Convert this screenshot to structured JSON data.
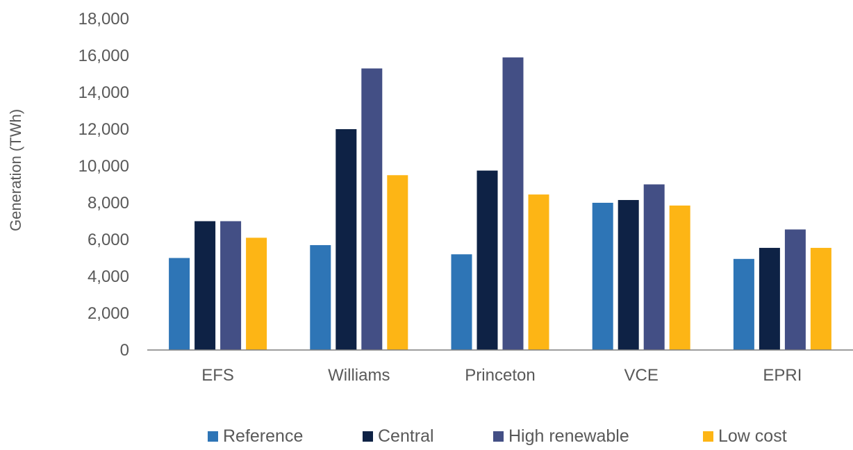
{
  "chart_data": {
    "type": "bar",
    "ylabel": "Generation (TWh)",
    "ylim": [
      0,
      18000
    ],
    "yticks": [
      0,
      2000,
      4000,
      6000,
      8000,
      10000,
      12000,
      14000,
      16000,
      18000
    ],
    "ytick_labels": [
      "0",
      "2,000",
      "4,000",
      "6,000",
      "8,000",
      "10,000",
      "12,000",
      "14,000",
      "16,000",
      "18,000"
    ],
    "grid": false,
    "legend": "bottom",
    "categories": [
      "EFS",
      "Williams",
      "Princeton",
      "VCE",
      "EPRI"
    ],
    "series": [
      {
        "name": "Reference",
        "color": "#2E75B6",
        "values": [
          5000,
          5700,
          5200,
          8000,
          4950
        ]
      },
      {
        "name": "Central",
        "color": "#0E2245",
        "values": [
          7000,
          12000,
          9750,
          8150,
          5550
        ]
      },
      {
        "name": "High renewable",
        "color": "#434F85",
        "values": [
          7000,
          15300,
          15900,
          9000,
          6550
        ]
      },
      {
        "name": "Low cost",
        "color": "#FDB515",
        "values": [
          6100,
          9500,
          8450,
          7850,
          5550
        ]
      }
    ]
  }
}
